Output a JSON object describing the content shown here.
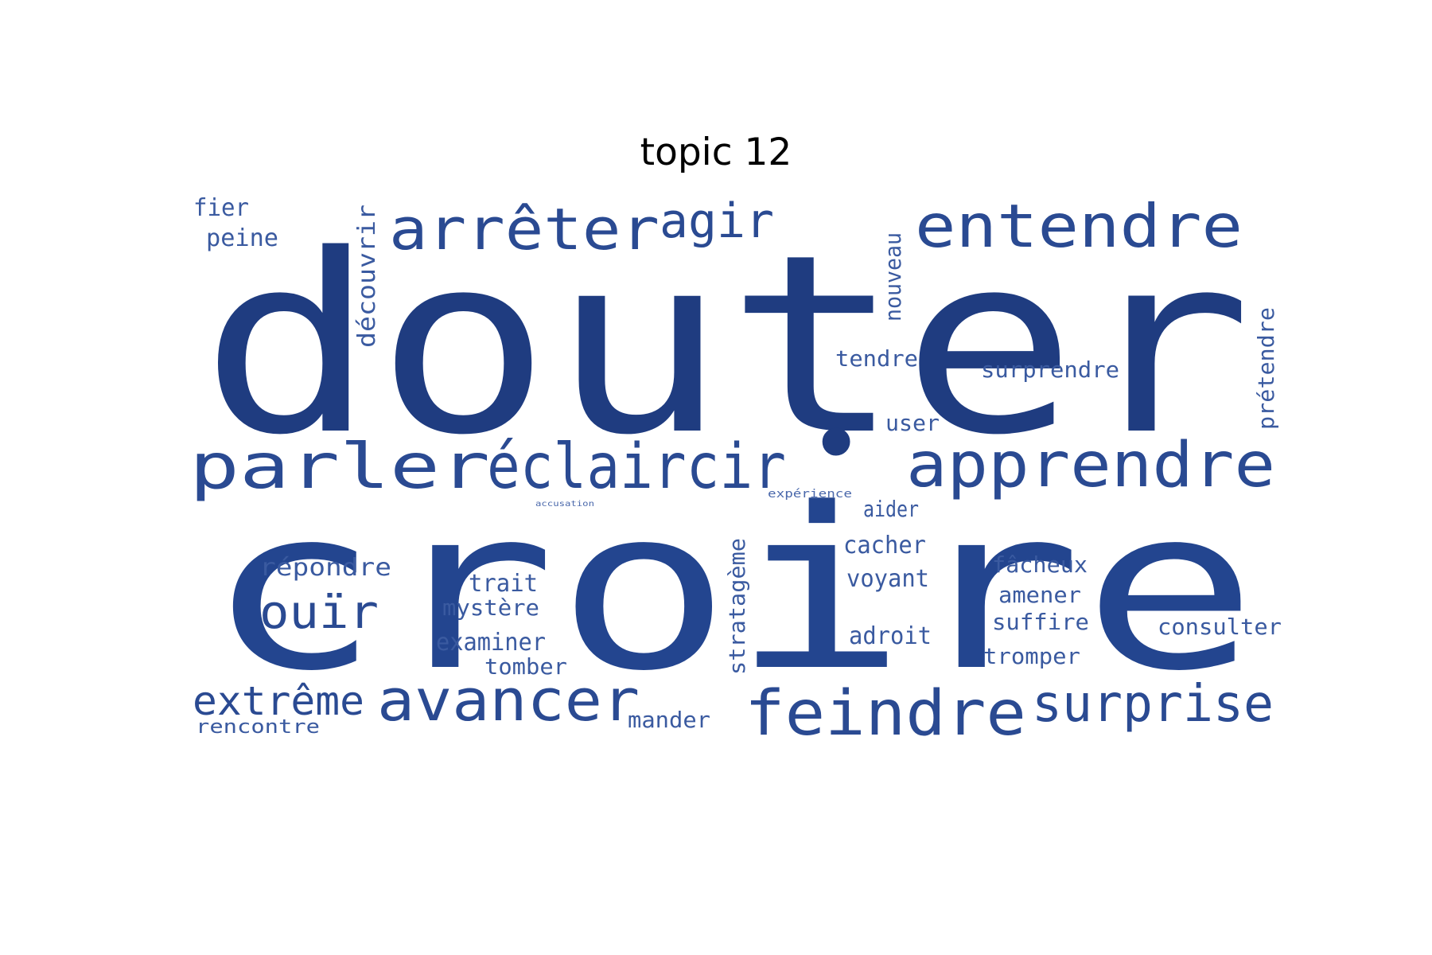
{
  "title": "topic 12",
  "words": [
    {
      "text": "douter",
      "color": "#1f3c80"
    },
    {
      "text": "croire",
      "color": "#23458f"
    },
    {
      "text": "arrêter",
      "color": "#2a4a92"
    },
    {
      "text": "agir",
      "color": "#2a4a92"
    },
    {
      "text": "entendre",
      "color": "#2a4a92"
    },
    {
      "text": "parler",
      "color": "#2a4a92"
    },
    {
      "text": "éclaircir",
      "color": "#2a4a92"
    },
    {
      "text": "•",
      "color": "#1f3c80"
    },
    {
      "text": "apprendre",
      "color": "#2a4a92"
    },
    {
      "text": "avancer",
      "color": "#2a4a92"
    },
    {
      "text": "feindre",
      "color": "#2a4a92"
    },
    {
      "text": "surprise",
      "color": "#2a4a92"
    },
    {
      "text": "extrême",
      "color": "#2a4a92"
    },
    {
      "text": "ouïr",
      "color": "#2a4a92"
    },
    {
      "text": "fier",
      "color": "#3a5aa0"
    },
    {
      "text": "peine",
      "color": "#3a5aa0"
    },
    {
      "text": "découvrir",
      "color": "#3a5aa0"
    },
    {
      "text": "nouveau",
      "color": "#3a5aa0"
    },
    {
      "text": "tendre",
      "color": "#3a5aa0"
    },
    {
      "text": "surprendre",
      "color": "#3a5aa0"
    },
    {
      "text": "user",
      "color": "#3a5aa0"
    },
    {
      "text": "prétendre",
      "color": "#3a5aa0"
    },
    {
      "text": "aider",
      "color": "#3a5aa0"
    },
    {
      "text": "expérience",
      "color": "#4a68ab"
    },
    {
      "text": "accusation",
      "color": "#4a68ab"
    },
    {
      "text": "cacher",
      "color": "#3a5aa0"
    },
    {
      "text": "répondre",
      "color": "#3a5aa0"
    },
    {
      "text": "fâcheux",
      "color": "#3a5aa0"
    },
    {
      "text": "voyant",
      "color": "#3a5aa0"
    },
    {
      "text": "trait",
      "color": "#3a5aa0"
    },
    {
      "text": "stratagème",
      "color": "#3a5aa0"
    },
    {
      "text": "amener",
      "color": "#3a5aa0"
    },
    {
      "text": "mystère",
      "color": "#3a5aa0"
    },
    {
      "text": "suffire",
      "color": "#3a5aa0"
    },
    {
      "text": "consulter",
      "color": "#3a5aa0"
    },
    {
      "text": "adroit",
      "color": "#3a5aa0"
    },
    {
      "text": "examiner",
      "color": "#3a5aa0"
    },
    {
      "text": "tomber",
      "color": "#3a5aa0"
    },
    {
      "text": "tromper",
      "color": "#3a5aa0"
    },
    {
      "text": "mander",
      "color": "#3a5aa0"
    },
    {
      "text": "rencontre",
      "color": "#3a5aa0"
    }
  ]
}
